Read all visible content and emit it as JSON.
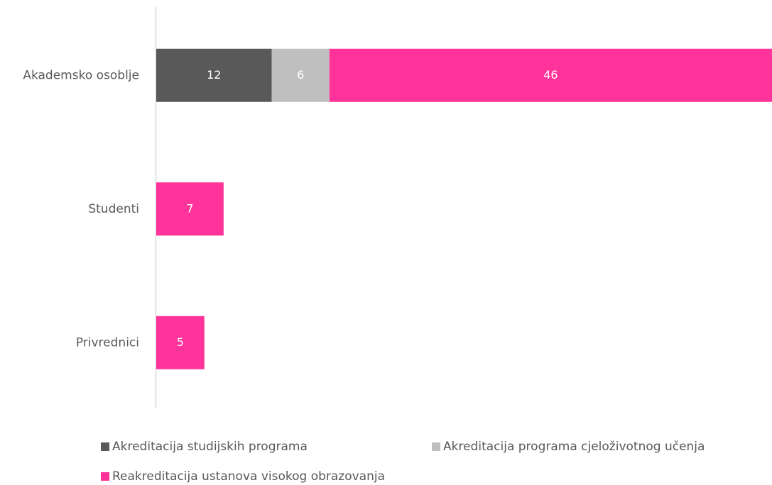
{
  "chart_data": {
    "type": "stacked-bar-horizontal",
    "categories": [
      "Akademsko osoblje",
      "Studenti",
      "Privrednici"
    ],
    "series": [
      {
        "name": "Akreditacija studijskih programa",
        "color": "#595959",
        "values": [
          12,
          null,
          null
        ]
      },
      {
        "name": "Akreditacija programa cjeloživotnog učenja",
        "color": "#bfbfbf",
        "values": [
          6,
          null,
          null
        ]
      },
      {
        "name": "Reakreditacija ustanova visokog obrazovanja",
        "color": "#ff3399",
        "values": [
          46,
          7,
          5
        ]
      }
    ],
    "legend": "bottom"
  }
}
